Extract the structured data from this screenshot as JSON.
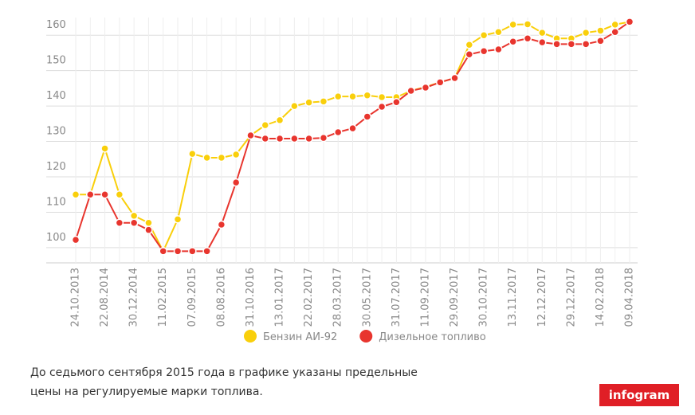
{
  "chart_data": {
    "type": "line",
    "categories": [
      "24.10.2013",
      null,
      "22.08.2014",
      null,
      "30.12.2014",
      null,
      "11.02.2015",
      null,
      "07.09.2015",
      null,
      "08.08.2016",
      null,
      "31.10.2016",
      null,
      "13.01.2017",
      null,
      "22.02.2017",
      null,
      "28.03.2017",
      null,
      "30.05.2017",
      null,
      "31.07.2017",
      null,
      "11.09.2017",
      null,
      "29.09.2017",
      null,
      "30.10.2017",
      null,
      "13.11.2017",
      null,
      "12.12.2017",
      null,
      "29.12.2017",
      null,
      "14.02.2018",
      null,
      "09.04.2018"
    ],
    "series": [
      {
        "name": "Бензин АИ-92",
        "color": "#f9cf0b",
        "values": [
          115,
          115,
          128,
          115,
          109,
          107,
          99,
          108,
          126.5,
          125.4,
          125.4,
          126.3,
          131.7,
          134.6,
          136,
          140,
          141,
          141.3,
          142.7,
          142.7,
          143,
          142.5,
          142.5,
          144.3,
          145.4,
          146.7,
          147.9,
          157.3,
          160,
          160.9,
          163,
          163.1,
          160.7,
          159.1,
          159.1,
          160.7,
          161.3,
          163,
          163.8
        ]
      },
      {
        "name": "Дизельное топливо",
        "color": "#e8352e",
        "values": [
          102.2,
          115,
          115,
          107,
          107,
          105,
          99,
          99,
          99,
          99,
          106.5,
          118.4,
          131.7,
          130.8,
          130.8,
          130.8,
          130.8,
          131,
          132.6,
          133.7,
          137,
          139.8,
          141.1,
          144.3,
          145.2,
          146.7,
          147.9,
          154.6,
          155.5,
          156,
          158.2,
          159.1,
          158,
          157.5,
          157.5,
          157.5,
          158.4,
          160.9,
          163.8
        ]
      }
    ],
    "ylim": [
      95.7,
      165
    ],
    "yticks": [
      100,
      110,
      120,
      130,
      140,
      150,
      160
    ],
    "grid": true,
    "note": "До седьмого сентября 2015 года в графике указаны предельные цены на регулируемые марки топлива.",
    "brand": "infogram"
  }
}
